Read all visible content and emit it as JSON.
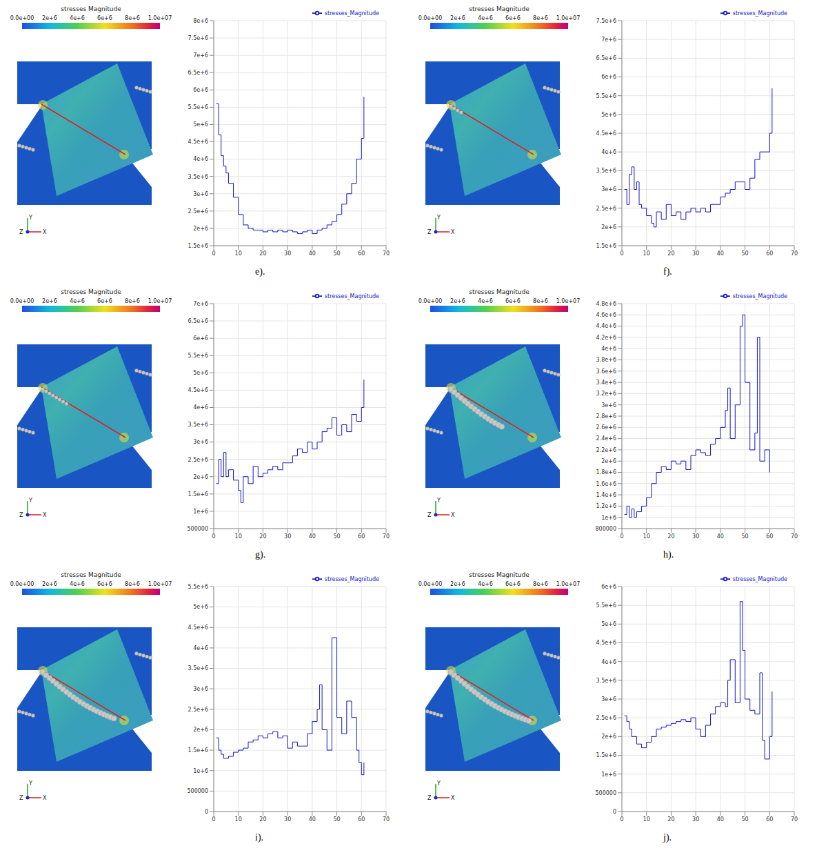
{
  "colorbar": {
    "title": "stresses Magnitude",
    "range": [
      0,
      10000000
    ],
    "ticks": [
      {
        "value": 0,
        "label": "0.0e+00"
      },
      {
        "value": 2000000,
        "label": "2e+6"
      },
      {
        "value": 4000000,
        "label": "4e+6"
      },
      {
        "value": 6000000,
        "label": "6e+6"
      },
      {
        "value": 8000000,
        "label": "8e+6"
      },
      {
        "value": 10000000,
        "label": "1.0e+07"
      }
    ]
  },
  "triad": [
    "Y",
    "Z",
    "X"
  ],
  "chart_data": [
    {
      "type": "line",
      "label": "e).",
      "x": [
        1,
        2,
        3,
        4,
        5,
        6,
        8,
        10,
        12,
        14,
        16,
        18,
        20,
        22,
        24,
        26,
        28,
        30,
        32,
        34,
        36,
        38,
        40,
        42,
        44,
        46,
        48,
        50,
        52,
        54,
        56,
        58,
        60,
        61
      ],
      "series": [
        {
          "name": "stresses_Magnitude",
          "color": "#1515c8",
          "values": [
            5600000,
            4700000,
            4100000,
            3800000,
            3600000,
            3300000,
            2900000,
            2400000,
            2100000,
            2000000,
            1950000,
            1950000,
            1900000,
            1950000,
            1900000,
            1950000,
            1900000,
            1950000,
            1900000,
            1850000,
            1900000,
            1950000,
            1850000,
            1950000,
            2000000,
            2100000,
            2200000,
            2400000,
            2700000,
            3000000,
            3300000,
            4000000,
            4600000,
            5800000
          ]
        }
      ],
      "xlim": [
        0,
        70
      ],
      "xticks": [
        0,
        10,
        20,
        30,
        40,
        50,
        60,
        70
      ],
      "ylim": [
        1500000,
        8000000
      ],
      "yticks": [
        {
          "value": 1500000,
          "label": "1.5e+6"
        },
        {
          "value": 2000000,
          "label": "2e+6"
        },
        {
          "value": 2500000,
          "label": "2.5e+6"
        },
        {
          "value": 3000000,
          "label": "3e+6"
        },
        {
          "value": 3500000,
          "label": "3.5e+6"
        },
        {
          "value": 4000000,
          "label": "4e+6"
        },
        {
          "value": 4500000,
          "label": "4.5e+6"
        },
        {
          "value": 5000000,
          "label": "5e+6"
        },
        {
          "value": 5500000,
          "label": "5.5e+6"
        },
        {
          "value": 6000000,
          "label": "6e+6"
        },
        {
          "value": 6500000,
          "label": "6.5e+6"
        },
        {
          "value": 7000000,
          "label": "7e+6"
        },
        {
          "value": 7500000,
          "label": "7.5e+6"
        },
        {
          "value": 8000000,
          "label": "8e+6"
        }
      ],
      "grid": true,
      "legend": "top right"
    },
    {
      "type": "line",
      "label": "f).",
      "x": [
        1,
        2,
        3,
        4,
        5,
        6,
        7,
        8,
        10,
        12,
        13,
        14,
        16,
        18,
        20,
        22,
        24,
        26,
        28,
        30,
        32,
        34,
        36,
        38,
        40,
        42,
        44,
        46,
        48,
        50,
        52,
        54,
        56,
        58,
        60,
        61
      ],
      "series": [
        {
          "name": "stresses_Magnitude",
          "color": "#1515c8",
          "values": [
            3000000,
            2600000,
            3400000,
            3600000,
            3000000,
            3200000,
            2600000,
            2500000,
            2300000,
            2100000,
            2000000,
            2400000,
            2200000,
            2600000,
            2300000,
            2400000,
            2200000,
            2400000,
            2500000,
            2400000,
            2500000,
            2400000,
            2600000,
            2600000,
            2800000,
            2900000,
            3000000,
            3200000,
            3200000,
            3000000,
            3300000,
            3800000,
            4000000,
            4000000,
            4500000,
            5700000
          ]
        }
      ],
      "xlim": [
        0,
        70
      ],
      "xticks": [
        0,
        10,
        20,
        30,
        40,
        50,
        60,
        70
      ],
      "ylim": [
        1500000,
        7500000
      ],
      "yticks": [
        {
          "value": 1500000,
          "label": "1.5e+6"
        },
        {
          "value": 2000000,
          "label": "2e+6"
        },
        {
          "value": 2500000,
          "label": "2.5e+6"
        },
        {
          "value": 3000000,
          "label": "3e+6"
        },
        {
          "value": 3500000,
          "label": "3.5e+6"
        },
        {
          "value": 4000000,
          "label": "4e+6"
        },
        {
          "value": 4500000,
          "label": "4.5e+6"
        },
        {
          "value": 5000000,
          "label": "5e+6"
        },
        {
          "value": 5500000,
          "label": "5.5e+6"
        },
        {
          "value": 6000000,
          "label": "6e+6"
        },
        {
          "value": 6500000,
          "label": "6.5e+6"
        },
        {
          "value": 7000000,
          "label": "7e+6"
        },
        {
          "value": 7500000,
          "label": "7.5e+6"
        }
      ],
      "grid": true,
      "legend": "top right"
    },
    {
      "type": "line",
      "label": "g).",
      "x": [
        1,
        2,
        3,
        4,
        5,
        6,
        8,
        10,
        11,
        12,
        14,
        16,
        18,
        20,
        22,
        24,
        26,
        28,
        30,
        32,
        34,
        36,
        38,
        40,
        42,
        44,
        46,
        48,
        50,
        52,
        54,
        56,
        58,
        60,
        61
      ],
      "series": [
        {
          "name": "stresses_Magnitude",
          "color": "#1515c8",
          "values": [
            1800000,
            2500000,
            2000000,
            2700000,
            2000000,
            2200000,
            1900000,
            1600000,
            1250000,
            2000000,
            1800000,
            2300000,
            2000000,
            2100000,
            2200000,
            2300000,
            2200000,
            2400000,
            2400000,
            2600000,
            2800000,
            2700000,
            3000000,
            2800000,
            3000000,
            3300000,
            3400000,
            3700000,
            3200000,
            3500000,
            3300000,
            3800000,
            3600000,
            4000000,
            4800000
          ]
        }
      ],
      "xlim": [
        0,
        70
      ],
      "xticks": [
        0,
        10,
        20,
        30,
        40,
        50,
        60,
        70
      ],
      "ylim": [
        500000,
        7000000
      ],
      "yticks": [
        500000,
        {
          "value": 1000000,
          "label": "1e+6"
        },
        {
          "value": 1500000,
          "label": "1.5e+6"
        },
        {
          "value": 2000000,
          "label": "2e+6"
        },
        {
          "value": 2500000,
          "label": "2.5e+6"
        },
        {
          "value": 3000000,
          "label": "3e+6"
        },
        {
          "value": 3500000,
          "label": "3.5e+6"
        },
        {
          "value": 4000000,
          "label": "4e+6"
        },
        {
          "value": 4500000,
          "label": "4.5e+6"
        },
        {
          "value": 5000000,
          "label": "5e+6"
        },
        {
          "value": 5500000,
          "label": "5.5e+6"
        },
        {
          "value": 6000000,
          "label": "6e+6"
        },
        {
          "value": 6500000,
          "label": "6.5e+6"
        },
        {
          "value": 7000000,
          "label": "7e+6"
        }
      ],
      "grid": true,
      "legend": "top right"
    },
    {
      "type": "line",
      "label": "h).",
      "x": [
        1,
        2,
        3,
        4,
        5,
        6,
        8,
        10,
        12,
        14,
        16,
        18,
        20,
        22,
        24,
        26,
        28,
        30,
        32,
        34,
        36,
        38,
        40,
        42,
        43,
        44,
        46,
        48,
        49,
        50,
        52,
        54,
        55,
        56,
        58,
        60
      ],
      "series": [
        {
          "name": "stresses_Magnitude",
          "color": "#1515c8",
          "values": [
            1050000,
            1200000,
            1000000,
            1150000,
            1000000,
            1100000,
            1200000,
            1350000,
            1600000,
            1800000,
            1900000,
            1850000,
            2000000,
            1950000,
            2000000,
            1850000,
            2100000,
            2200000,
            2150000,
            2100000,
            2300000,
            2400000,
            2600000,
            2900000,
            3300000,
            2400000,
            3000000,
            4400000,
            4600000,
            3400000,
            2200000,
            2500000,
            4200000,
            2000000,
            2200000,
            1800000
          ]
        }
      ],
      "xlim": [
        0,
        70
      ],
      "xticks": [
        0,
        10,
        20,
        30,
        40,
        50,
        60,
        70
      ],
      "ylim": [
        800000,
        4800000
      ],
      "yticks": [
        800000,
        {
          "value": 1000000,
          "label": "1e+6"
        },
        {
          "value": 1200000,
          "label": "1.2e+6"
        },
        {
          "value": 1400000,
          "label": "1.4e+6"
        },
        {
          "value": 1600000,
          "label": "1.6e+6"
        },
        {
          "value": 1800000,
          "label": "1.8e+6"
        },
        {
          "value": 2000000,
          "label": "2e+6"
        },
        {
          "value": 2200000,
          "label": "2.2e+6"
        },
        {
          "value": 2400000,
          "label": "2.4e+6"
        },
        {
          "value": 2600000,
          "label": "2.6e+6"
        },
        {
          "value": 2800000,
          "label": "2.8e+6"
        },
        {
          "value": 3000000,
          "label": "3e+6"
        },
        {
          "value": 3200000,
          "label": "3.2e+6"
        },
        {
          "value": 3400000,
          "label": "3.4e+6"
        },
        {
          "value": 3600000,
          "label": "3.6e+6"
        },
        {
          "value": 3800000,
          "label": "3.8e+6"
        },
        {
          "value": 4000000,
          "label": "4e+6"
        },
        {
          "value": 4200000,
          "label": "4.2e+6"
        },
        {
          "value": 4400000,
          "label": "4.4e+6"
        },
        {
          "value": 4600000,
          "label": "4.6e+6"
        },
        {
          "value": 4800000,
          "label": "4.8e+6"
        }
      ],
      "grid": true,
      "legend": "top right"
    },
    {
      "type": "line",
      "label": "i).",
      "x": [
        1,
        2,
        3,
        4,
        6,
        8,
        10,
        12,
        14,
        16,
        18,
        20,
        22,
        24,
        26,
        28,
        30,
        32,
        34,
        36,
        38,
        40,
        42,
        43,
        44,
        46,
        48,
        50,
        52,
        54,
        56,
        58,
        59,
        60,
        61
      ],
      "series": [
        {
          "name": "stresses_Magnitude",
          "color": "#1515c8",
          "values": [
            1800000,
            1500000,
            1400000,
            1300000,
            1350000,
            1450000,
            1500000,
            1550000,
            1700000,
            1750000,
            1850000,
            1800000,
            1900000,
            1950000,
            1800000,
            1850000,
            1550000,
            1700000,
            1600000,
            1600000,
            1900000,
            2200000,
            2500000,
            3100000,
            2000000,
            1500000,
            4250000,
            2300000,
            1900000,
            2700000,
            2300000,
            1500000,
            1200000,
            900000,
            1200000
          ]
        }
      ],
      "xlim": [
        0,
        70
      ],
      "xticks": [
        0,
        10,
        20,
        30,
        40,
        50,
        60,
        70
      ],
      "ylim": [
        0,
        5500000
      ],
      "yticks": [
        0,
        500000,
        {
          "value": 1000000,
          "label": "1e+6"
        },
        {
          "value": 1500000,
          "label": "1.5e+6"
        },
        {
          "value": 2000000,
          "label": "2e+6"
        },
        {
          "value": 2500000,
          "label": "2.5e+6"
        },
        {
          "value": 3000000,
          "label": "3e+6"
        },
        {
          "value": 3500000,
          "label": "3.5e+6"
        },
        {
          "value": 4000000,
          "label": "4e+6"
        },
        {
          "value": 4500000,
          "label": "4.5e+6"
        },
        {
          "value": 5000000,
          "label": "5e+6"
        },
        {
          "value": 5500000,
          "label": "5.5e+6"
        }
      ],
      "grid": true,
      "legend": "top right"
    },
    {
      "type": "line",
      "label": "j).",
      "x": [
        1,
        2,
        3,
        4,
        6,
        8,
        10,
        12,
        14,
        16,
        18,
        20,
        22,
        24,
        26,
        28,
        30,
        32,
        34,
        36,
        38,
        40,
        42,
        43,
        44,
        46,
        48,
        49,
        50,
        52,
        54,
        56,
        57,
        58,
        60,
        61
      ],
      "series": [
        {
          "name": "stresses_Magnitude",
          "color": "#1515c8",
          "values": [
            2550000,
            2400000,
            2200000,
            2000000,
            1800000,
            1700000,
            1850000,
            2000000,
            2200000,
            2250000,
            2300000,
            2350000,
            2400000,
            2450000,
            2400000,
            2500000,
            2200000,
            2000000,
            2300000,
            2600000,
            2800000,
            2900000,
            2800000,
            3500000,
            4050000,
            2900000,
            5600000,
            4300000,
            3000000,
            2700000,
            2600000,
            3700000,
            1900000,
            1400000,
            2000000,
            3200000
          ]
        }
      ],
      "xlim": [
        0,
        70
      ],
      "xticks": [
        0,
        10,
        20,
        30,
        40,
        50,
        60,
        70
      ],
      "ylim": [
        0,
        6000000
      ],
      "yticks": [
        0,
        500000,
        {
          "value": 1000000,
          "label": "1e+6"
        },
        {
          "value": 1500000,
          "label": "1.5e+6"
        },
        {
          "value": 2000000,
          "label": "2e+6"
        },
        {
          "value": 2500000,
          "label": "2.5e+6"
        },
        {
          "value": 3000000,
          "label": "3e+6"
        },
        {
          "value": 3500000,
          "label": "3.5e+6"
        },
        {
          "value": 4000000,
          "label": "4e+6"
        },
        {
          "value": 4500000,
          "label": "4.5e+6"
        },
        {
          "value": 5000000,
          "label": "5e+6"
        },
        {
          "value": 5500000,
          "label": "5.5e+6"
        },
        {
          "value": 6000000,
          "label": "6e+6"
        }
      ],
      "grid": true,
      "legend": "top right"
    }
  ]
}
